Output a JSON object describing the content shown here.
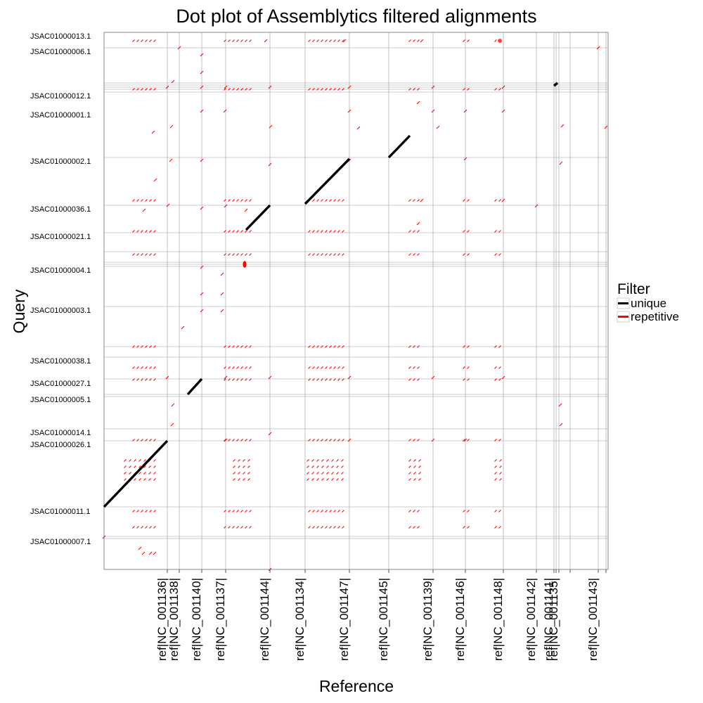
{
  "chart_data": {
    "type": "scatter",
    "title": "Dot plot of Assemblytics filtered alignments",
    "xlabel": "Reference",
    "ylabel": "Query",
    "x_ticks": [
      "ref|NC_001136|",
      "ref|NC_001138|",
      "ref|NC_001140|",
      "ref|NC_001137|",
      "ref|NC_001144|",
      "ref|NC_001134|",
      "ref|NC_001147|",
      "ref|NC_001145|",
      "ref|NC_001139|",
      "ref|NC_001146|",
      "ref|NC_001148|",
      "ref|NC_001142|",
      "ref|NC_001141|",
      "ref|NC_001135|",
      "ref|NC_001143|"
    ],
    "y_ticks": [
      "JSAC01000013.1",
      "JSAC01000006.1",
      "JSAC01000012.1",
      "JSAC01000001.1",
      "JSAC01000002.1",
      "JSAC01000036.1",
      "JSAC01000021.1",
      "JSAC01000004.1",
      "JSAC01000003.1",
      "JSAC01000038.1",
      "JSAC01000027.1",
      "JSAC01000005.1",
      "JSAC01000014.1",
      "JSAC01000026.1",
      "JSAC01000011.1",
      "JSAC01000007.1"
    ],
    "legend": {
      "title": "Filter",
      "position": "right",
      "entries": [
        {
          "label": "unique",
          "color": "#000000"
        },
        {
          "label": "repetitive",
          "color": "#ff0000"
        }
      ]
    },
    "grid": true,
    "colors": {
      "unique": "#000000",
      "repetitive": "#ff0000",
      "gridline": "#999999",
      "panel_border": "#888888"
    }
  }
}
